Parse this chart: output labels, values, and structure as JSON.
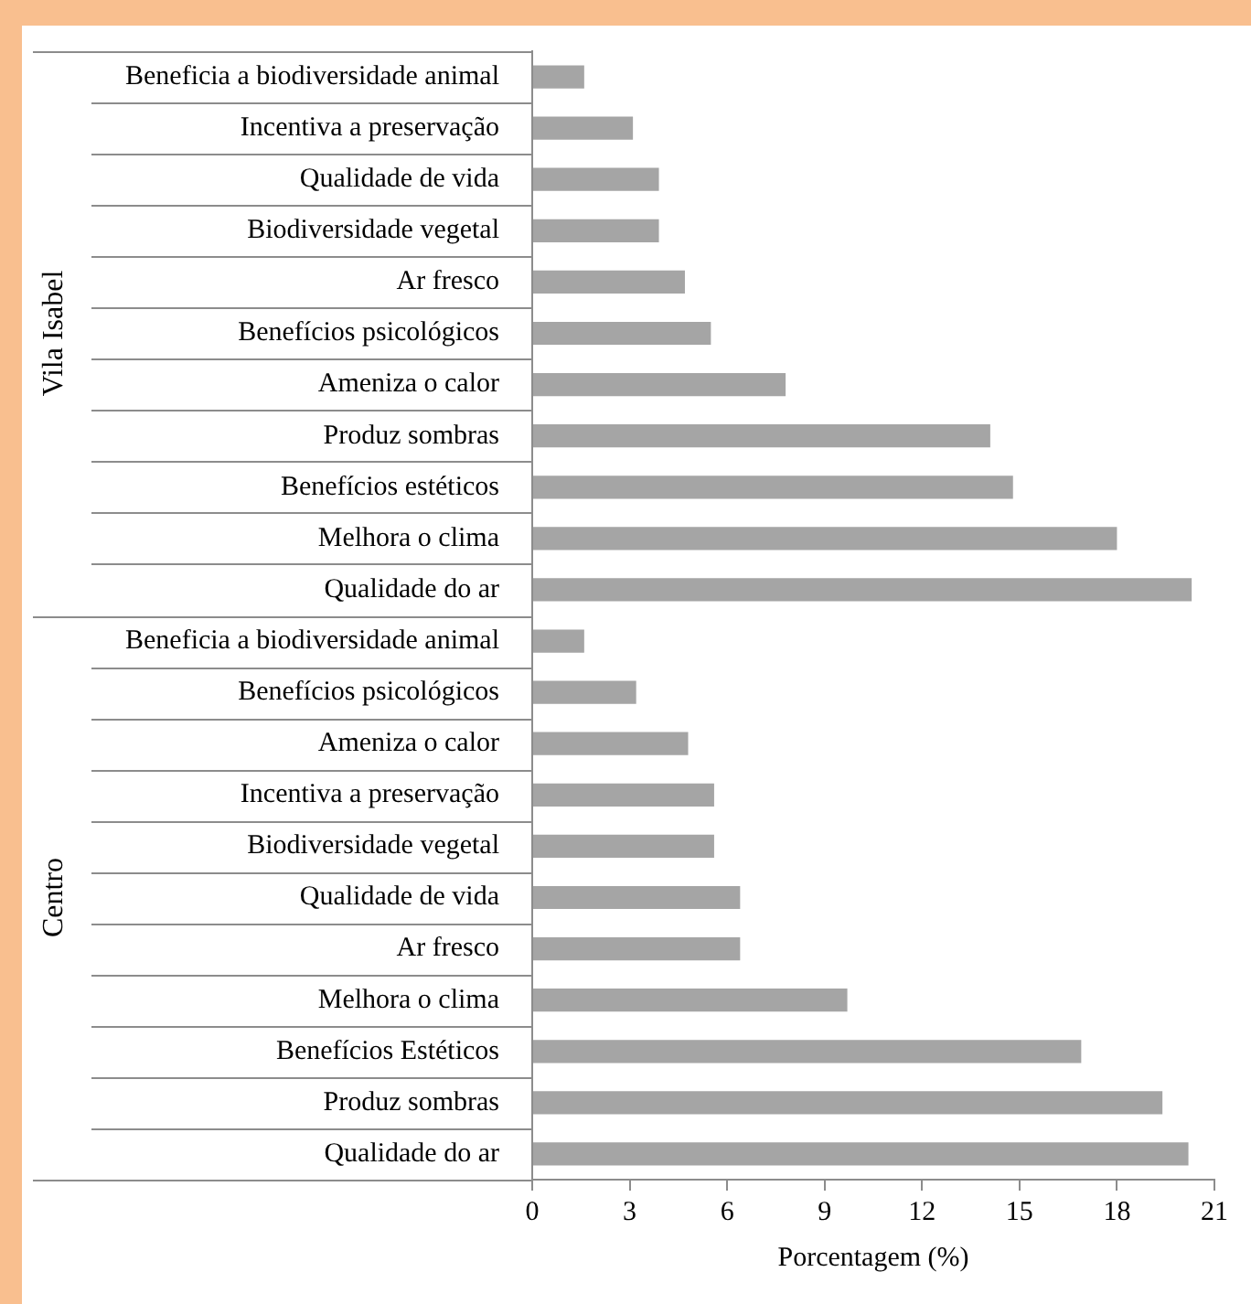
{
  "chart_data": {
    "type": "bar",
    "orientation": "horizontal",
    "categories": [
      "Beneficia a biodiversidade animal",
      "Incentiva a preservação",
      "Qualidade de vida",
      "Biodiversidade vegetal",
      "Ar fresco",
      "Benefícios psicológicos",
      "Ameniza o calor",
      "Produz sombras",
      "Benefícios estéticos",
      "Melhora o clima",
      "Qualidade do ar",
      "Beneficia a biodiversidade animal",
      "Benefícios psicológicos",
      "Ameniza o calor",
      "Incentiva a preservação",
      "Biodiversidade vegetal",
      "Qualidade de vida",
      "Ar fresco",
      "Melhora o clima",
      "Benefícios Estéticos",
      "Produz sombras",
      "Qualidade do ar"
    ],
    "values": [
      1.6,
      3.1,
      3.9,
      3.9,
      4.7,
      5.5,
      7.8,
      14.1,
      14.8,
      18.0,
      20.3,
      1.6,
      3.2,
      4.8,
      5.6,
      5.6,
      6.4,
      6.4,
      9.7,
      16.9,
      19.4,
      20.2
    ],
    "color": "#a5a5a5",
    "xlabel": "Porcentagem (%)",
    "xlim": [
      0,
      21
    ],
    "xticks": [
      0,
      3,
      6,
      9,
      12,
      15,
      18,
      21
    ],
    "annotations": [
      "Vila Isabel",
      "Centro"
    ],
    "grid": false,
    "legend": false
  }
}
